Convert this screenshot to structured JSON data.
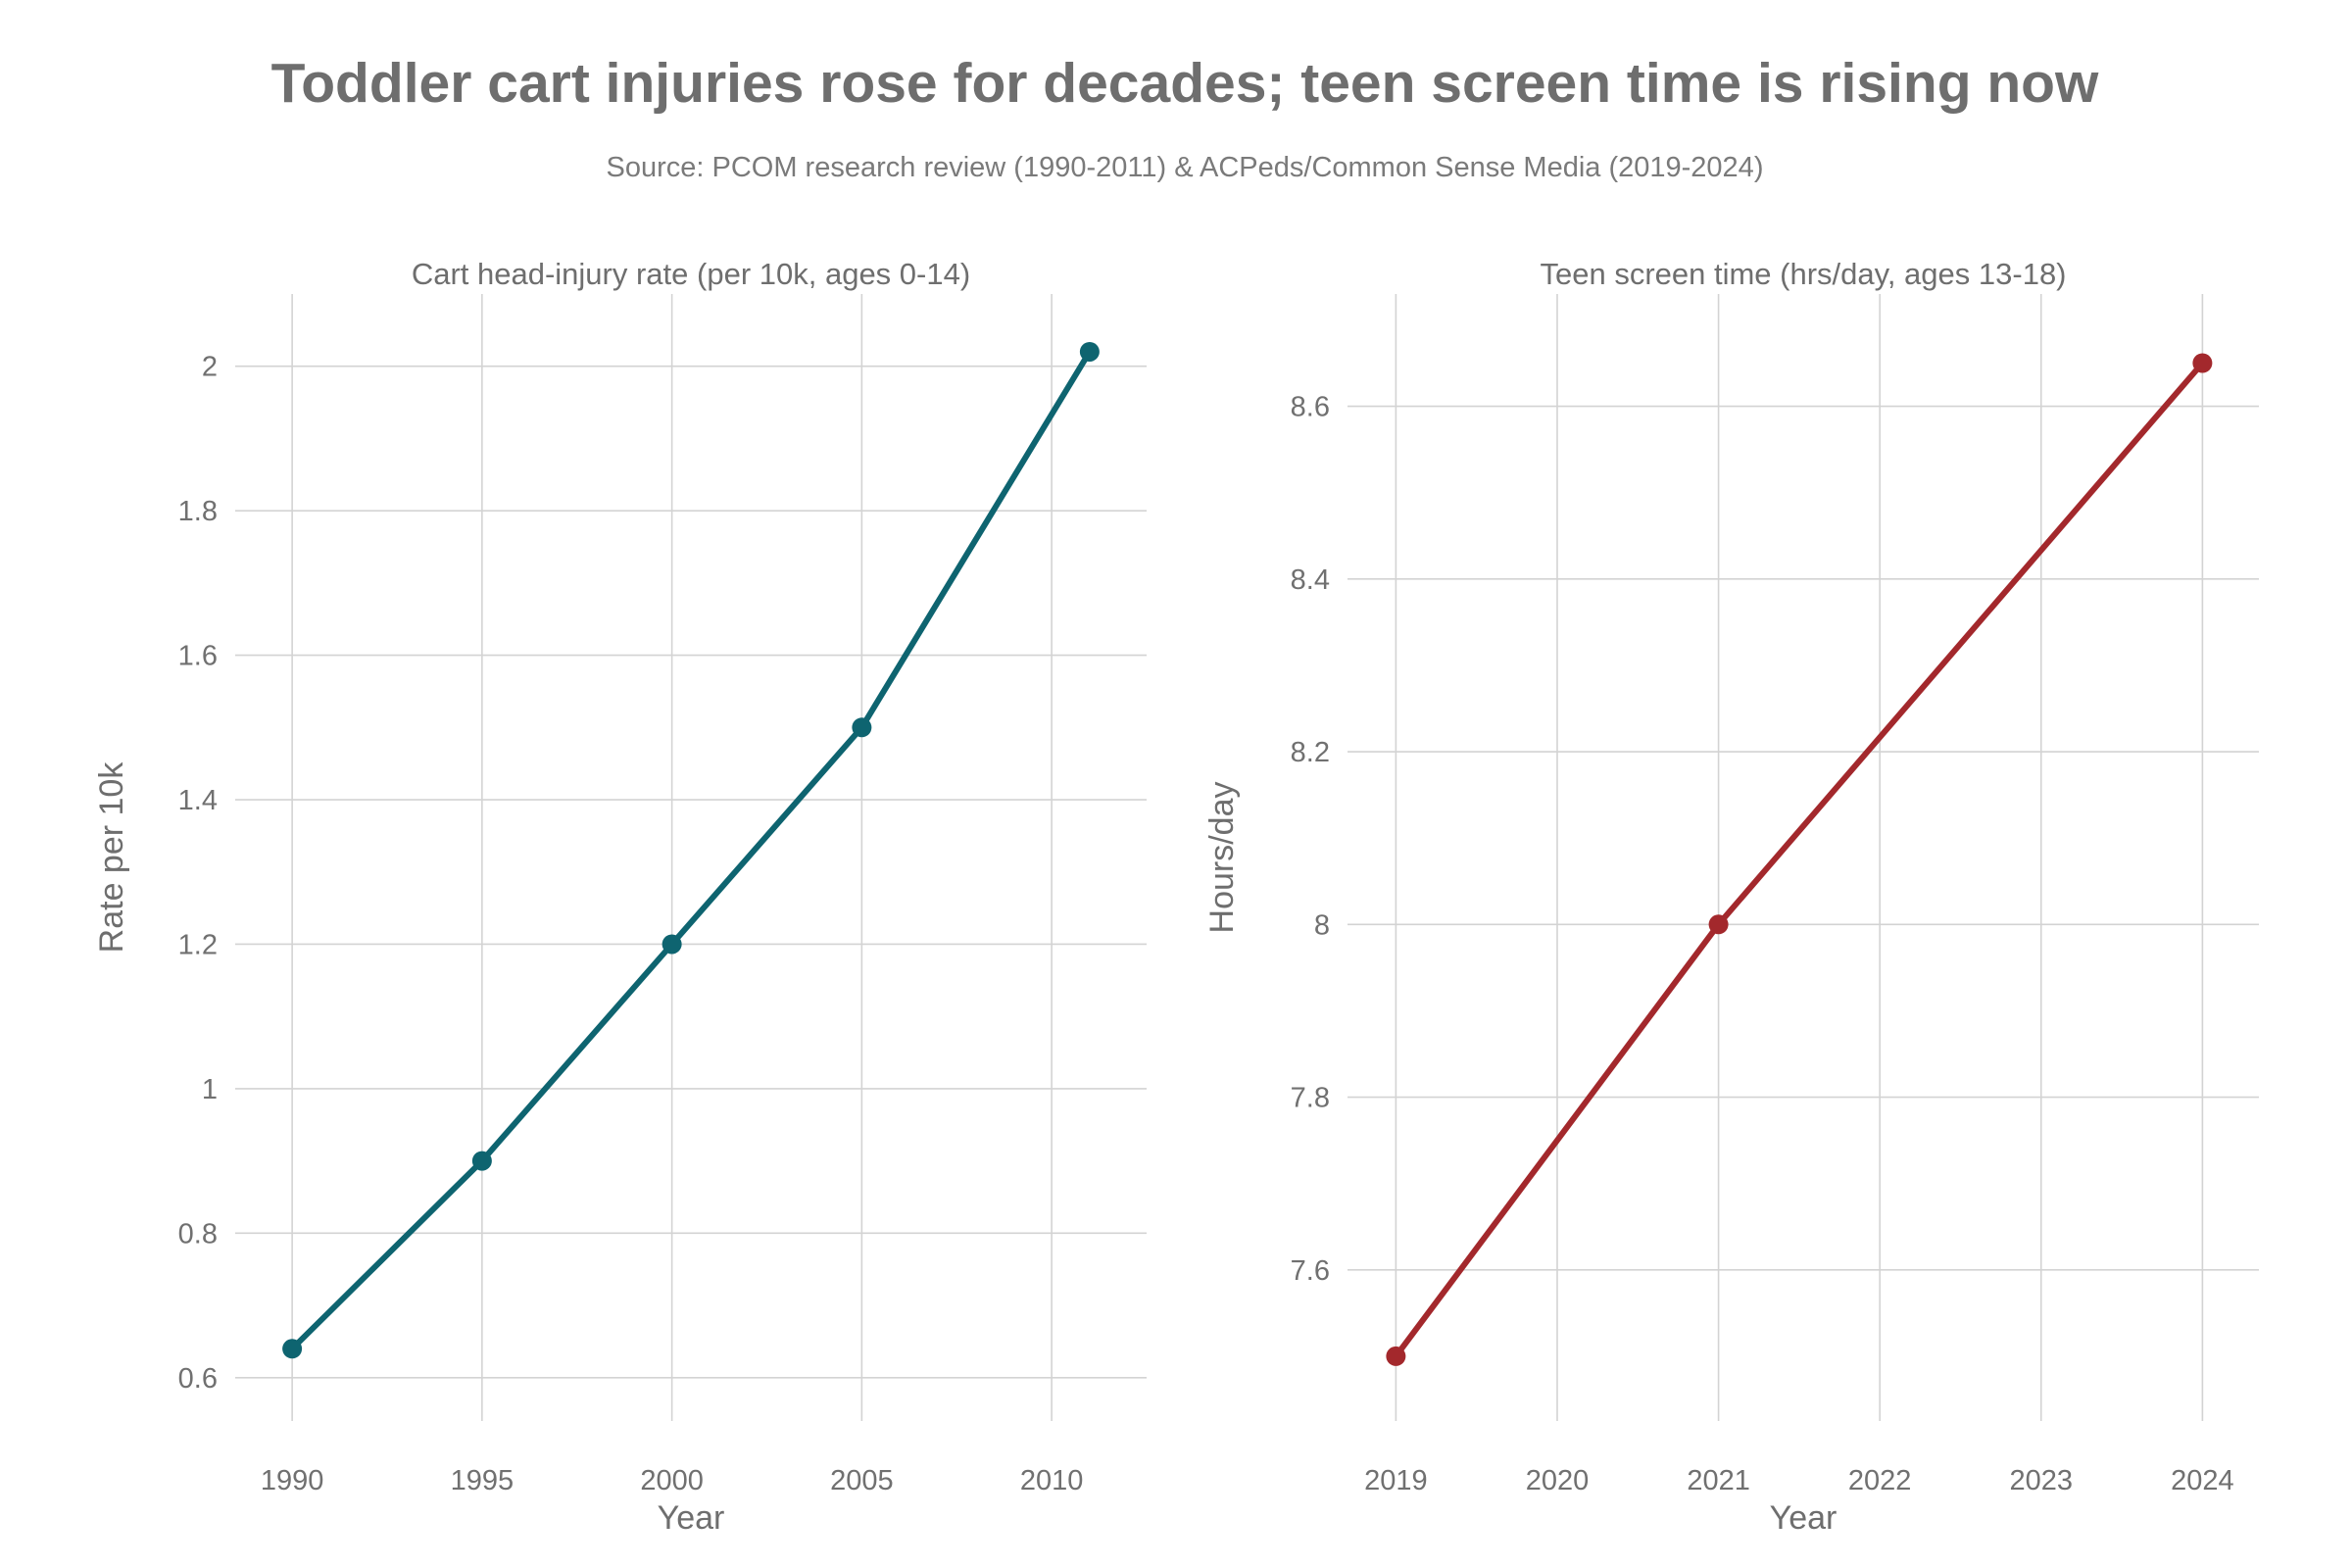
{
  "title": "Toddler cart injuries rose for decades; teen screen time is rising now",
  "subtitle": "Source: PCOM research review (1990-2011) & ACPeds/Common Sense Media (2019-2024)",
  "chart_data": [
    {
      "type": "line",
      "title": "Cart head-injury rate (per 10k, ages 0-14)",
      "xlabel": "Year",
      "ylabel": "Rate per 10k",
      "x": [
        1990,
        1995,
        2000,
        2005,
        2011
      ],
      "series": [
        {
          "values": [
            0.64,
            0.9,
            1.2,
            1.5,
            2.02
          ],
          "color": "#0e6470"
        }
      ],
      "xlim": [
        1988.5,
        2012.5
      ],
      "ylim": [
        0.54,
        2.1
      ],
      "xticks": [
        1990,
        1995,
        2000,
        2005,
        2010
      ],
      "xtick_labels": [
        "1990",
        "1995",
        "2000",
        "2005",
        "2010"
      ],
      "yticks": [
        0.6,
        0.8,
        1,
        1.2,
        1.4,
        1.6,
        1.8,
        2
      ],
      "ytick_labels": [
        "0.6",
        "0.8",
        "1",
        "1.2",
        "1.4",
        "1.6",
        "1.8",
        "2"
      ],
      "grid": true,
      "markers": true
    },
    {
      "type": "line",
      "title": "Teen screen time (hrs/day, ages 13-18)",
      "xlabel": "Year",
      "ylabel": "Hours/day",
      "x": [
        2019,
        2021,
        2024
      ],
      "series": [
        {
          "values": [
            7.5,
            8.0,
            8.65
          ],
          "color": "#a3282c"
        }
      ],
      "xlim": [
        2018.7,
        2024.35
      ],
      "ylim": [
        7.425,
        8.73
      ],
      "xticks": [
        2019,
        2020,
        2021,
        2022,
        2023,
        2024
      ],
      "xtick_labels": [
        "2019",
        "2020",
        "2021",
        "2022",
        "2023",
        "2024"
      ],
      "yticks": [
        7.6,
        7.8,
        8,
        8.2,
        8.4,
        8.6
      ],
      "ytick_labels": [
        "7.6",
        "7.8",
        "8",
        "8.2",
        "8.4",
        "8.6"
      ],
      "grid": true,
      "markers": true
    }
  ]
}
